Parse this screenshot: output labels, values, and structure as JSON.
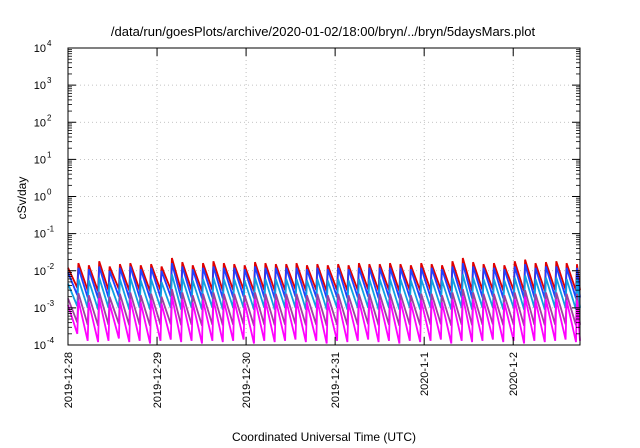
{
  "chart_data": {
    "type": "line",
    "title": "/data/run/goesPlots/archive/2020-01-02/18:00/bryn/../bryn/5daysMars.plot",
    "xlabel": "Coordinated Universal Time (UTC)",
    "ylabel": "cSv/day",
    "yscale": "log",
    "ylim": [
      0.0001,
      10000
    ],
    "xlim": [
      "2019-12-28 00:00",
      "2020-01-02 18:00"
    ],
    "grid": true,
    "x_ticks": [
      "2019-12-28",
      "2019-12-29",
      "2019-12-30",
      "2019-12-31",
      "2020-1-1",
      "2020-1-2"
    ],
    "y_ticks": [
      {
        "base": "10",
        "exp": "-4"
      },
      {
        "base": "10",
        "exp": "-3"
      },
      {
        "base": "10",
        "exp": "-2"
      },
      {
        "base": "10",
        "exp": "-1"
      },
      {
        "base": "10",
        "exp": "0"
      },
      {
        "base": "10",
        "exp": "1"
      },
      {
        "base": "10",
        "exp": "2"
      },
      {
        "base": "10",
        "exp": "3"
      },
      {
        "base": "10",
        "exp": "4"
      }
    ],
    "sawtooth_cycle_hours": 2.8,
    "series": [
      {
        "color": "#e00000",
        "peaks": [
          0.012,
          0.016,
          0.014,
          0.018,
          0.013,
          0.015,
          0.016,
          0.014,
          0.015,
          0.013,
          0.022,
          0.017,
          0.014,
          0.016,
          0.018,
          0.016,
          0.015,
          0.014,
          0.017,
          0.016,
          0.015,
          0.015,
          0.016,
          0.014,
          0.015,
          0.014,
          0.015,
          0.014,
          0.016,
          0.015,
          0.015,
          0.016,
          0.015,
          0.014,
          0.016,
          0.015,
          0.014,
          0.018,
          0.022,
          0.017,
          0.015,
          0.016,
          0.014,
          0.018,
          0.02,
          0.016,
          0.017,
          0.018,
          0.016,
          0.015
        ],
        "troughs": [
          0.0035,
          0.003,
          0.0028,
          0.003,
          0.0032,
          0.0029,
          0.003,
          0.0028,
          0.003,
          0.0031,
          0.0029,
          0.003,
          0.0028,
          0.003,
          0.0029,
          0.003,
          0.0031,
          0.0028,
          0.003,
          0.0029,
          0.003,
          0.0031,
          0.0029,
          0.003,
          0.0028,
          0.003,
          0.0029,
          0.003,
          0.0031,
          0.0029,
          0.003,
          0.0028,
          0.003,
          0.0029,
          0.003,
          0.0031,
          0.0028,
          0.003,
          0.0029,
          0.003,
          0.0031,
          0.0029,
          0.003,
          0.0028,
          0.003,
          0.0029,
          0.003,
          0.0031,
          0.0029,
          0.003
        ]
      },
      {
        "color": "#2040ff",
        "peaks": [
          0.009,
          0.012,
          0.011,
          0.013,
          0.01,
          0.012,
          0.013,
          0.011,
          0.012,
          0.01,
          0.016,
          0.013,
          0.011,
          0.012,
          0.013,
          0.012,
          0.012,
          0.011,
          0.013,
          0.012,
          0.012,
          0.012,
          0.012,
          0.011,
          0.012,
          0.011,
          0.012,
          0.011,
          0.012,
          0.012,
          0.012,
          0.012,
          0.012,
          0.011,
          0.012,
          0.012,
          0.011,
          0.013,
          0.016,
          0.013,
          0.012,
          0.012,
          0.011,
          0.013,
          0.015,
          0.012,
          0.013,
          0.013,
          0.012,
          0.012
        ],
        "troughs": [
          0.0022,
          0.0019,
          0.0018,
          0.0019,
          0.002,
          0.0018,
          0.0019,
          0.0018,
          0.0019,
          0.002,
          0.0018,
          0.0019,
          0.0018,
          0.0019,
          0.0018,
          0.0019,
          0.002,
          0.0018,
          0.0019,
          0.0018,
          0.0019,
          0.002,
          0.0018,
          0.0019,
          0.0018,
          0.0019,
          0.0018,
          0.0019,
          0.002,
          0.0018,
          0.0019,
          0.0018,
          0.0019,
          0.0018,
          0.0019,
          0.002,
          0.0018,
          0.0019,
          0.0018,
          0.0019,
          0.002,
          0.0018,
          0.0019,
          0.0018,
          0.0019,
          0.0018,
          0.0019,
          0.002,
          0.0018,
          0.0019
        ]
      },
      {
        "color": "#10a0e0",
        "peaks": [
          0.0045,
          0.006,
          0.0055,
          0.0065,
          0.005,
          0.006,
          0.0065,
          0.0055,
          0.006,
          0.005,
          0.008,
          0.0065,
          0.0055,
          0.006,
          0.0065,
          0.006,
          0.006,
          0.0055,
          0.0065,
          0.006,
          0.006,
          0.006,
          0.006,
          0.0055,
          0.006,
          0.0055,
          0.006,
          0.0055,
          0.006,
          0.006,
          0.006,
          0.006,
          0.006,
          0.0055,
          0.006,
          0.006,
          0.0055,
          0.0065,
          0.008,
          0.0065,
          0.006,
          0.006,
          0.0055,
          0.0065,
          0.0075,
          0.006,
          0.0065,
          0.0065,
          0.006,
          0.006
        ],
        "troughs": [
          0.0011,
          0.001,
          0.0009,
          0.001,
          0.001,
          0.0009,
          0.001,
          0.0009,
          0.001,
          0.001,
          0.0009,
          0.001,
          0.0009,
          0.001,
          0.0009,
          0.001,
          0.001,
          0.0009,
          0.001,
          0.0009,
          0.001,
          0.001,
          0.0009,
          0.001,
          0.0009,
          0.001,
          0.0009,
          0.001,
          0.001,
          0.0009,
          0.001,
          0.0009,
          0.001,
          0.0009,
          0.001,
          0.001,
          0.0009,
          0.001,
          0.0009,
          0.001,
          0.001,
          0.0009,
          0.001,
          0.0009,
          0.001,
          0.0009,
          0.001,
          0.001,
          0.0009,
          0.001
        ]
      },
      {
        "color": "#a040a0",
        "peaks": [
          0.0018,
          0.0025,
          0.0022,
          0.0027,
          0.002,
          0.0024,
          0.0026,
          0.0022,
          0.0024,
          0.002,
          0.0032,
          0.0026,
          0.0022,
          0.0024,
          0.0026,
          0.0024,
          0.0024,
          0.0022,
          0.0026,
          0.0024,
          0.0024,
          0.0024,
          0.0024,
          0.0022,
          0.0024,
          0.0022,
          0.0024,
          0.0022,
          0.0024,
          0.0024,
          0.0024,
          0.0024,
          0.0024,
          0.0022,
          0.0024,
          0.0024,
          0.0022,
          0.0026,
          0.0032,
          0.0026,
          0.0024,
          0.0024,
          0.0022,
          0.0026,
          0.003,
          0.0024,
          0.0026,
          0.0026,
          0.0024,
          0.0024
        ],
        "troughs": [
          0.0004,
          0.00035,
          0.00033,
          0.00035,
          0.00037,
          0.00034,
          0.00035,
          0.00033,
          0.00035,
          0.00036,
          0.00034,
          0.00035,
          0.00033,
          0.00035,
          0.00034,
          0.00035,
          0.00036,
          0.00033,
          0.00035,
          0.00034,
          0.00035,
          0.00036,
          0.00034,
          0.00035,
          0.00033,
          0.00035,
          0.00034,
          0.00035,
          0.00036,
          0.00034,
          0.00035,
          0.00033,
          0.00035,
          0.00034,
          0.00035,
          0.00036,
          0.00033,
          0.00035,
          0.00034,
          0.00035,
          0.00036,
          0.00034,
          0.00035,
          0.00033,
          0.00035,
          0.00034,
          0.00035,
          0.00036,
          0.00034,
          0.00035
        ]
      },
      {
        "color": "#ff00ff",
        "peaks": [
          0.0012,
          0.0016,
          0.0014,
          0.0018,
          0.0013,
          0.0015,
          0.0017,
          0.0014,
          0.0016,
          0.0013,
          0.0021,
          0.0017,
          0.0014,
          0.0016,
          0.0017,
          0.0016,
          0.0016,
          0.0014,
          0.0017,
          0.0016,
          0.0016,
          0.0016,
          0.0016,
          0.0014,
          0.0016,
          0.0014,
          0.0016,
          0.0014,
          0.0016,
          0.0016,
          0.0016,
          0.0016,
          0.0016,
          0.0014,
          0.0016,
          0.0016,
          0.0014,
          0.0017,
          0.0021,
          0.0017,
          0.0016,
          0.0016,
          0.0014,
          0.0017,
          0.002,
          0.0016,
          0.0017,
          0.0017,
          0.0016,
          0.0016
        ],
        "troughs": [
          0.0002,
          0.00013,
          0.00012,
          0.00013,
          0.00015,
          0.00012,
          0.00013,
          0.00011,
          0.00013,
          0.00014,
          0.00012,
          0.00013,
          0.00011,
          0.00013,
          0.00012,
          0.00013,
          0.00014,
          0.00011,
          0.00013,
          0.00012,
          0.00013,
          0.00014,
          0.00012,
          0.00013,
          0.00011,
          0.00013,
          0.00012,
          0.00013,
          0.00014,
          0.00012,
          0.00013,
          0.00011,
          0.00013,
          0.00012,
          0.00013,
          0.00014,
          0.00011,
          0.00013,
          0.00012,
          0.00013,
          0.00014,
          0.00012,
          0.00013,
          0.00011,
          0.00013,
          0.00012,
          0.00013,
          0.00014,
          0.00012,
          0.00013
        ]
      }
    ]
  }
}
